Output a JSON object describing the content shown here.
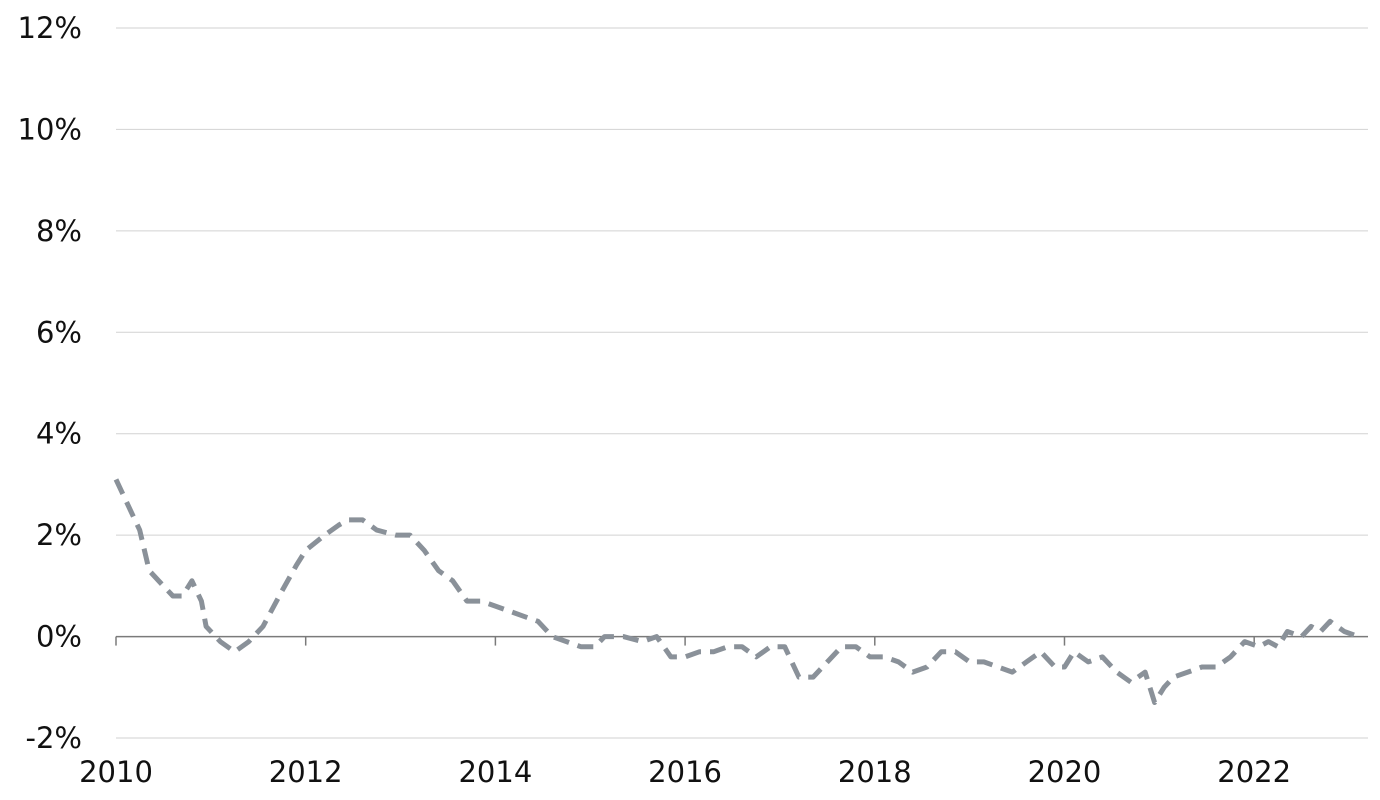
{
  "chart_data": {
    "type": "line",
    "title": "",
    "xlabel": "",
    "ylabel": "",
    "xlim": [
      2010,
      2023.3
    ],
    "ylim": [
      -2,
      12
    ],
    "grid": true,
    "x_ticks": [
      {
        "value": 2010,
        "label": "2010"
      },
      {
        "value": 2012,
        "label": "2012"
      },
      {
        "value": 2014,
        "label": "2014"
      },
      {
        "value": 2016,
        "label": "2016"
      },
      {
        "value": 2018,
        "label": "2018"
      },
      {
        "value": 2020,
        "label": "2020"
      },
      {
        "value": 2022,
        "label": "2022"
      }
    ],
    "y_ticks": [
      {
        "value": -2,
        "label": "-2%"
      },
      {
        "value": 0,
        "label": "0%"
      },
      {
        "value": 2,
        "label": "2%"
      },
      {
        "value": 4,
        "label": "4%"
      },
      {
        "value": 6,
        "label": "6%"
      },
      {
        "value": 8,
        "label": "8%"
      },
      {
        "value": 10,
        "label": "10%"
      },
      {
        "value": 12,
        "label": "12%"
      }
    ],
    "series": [
      {
        "color": "#8a9199",
        "style": "dashed",
        "points": [
          [
            2010.0,
            3.1
          ],
          [
            2010.25,
            2.1
          ],
          [
            2010.35,
            1.3
          ],
          [
            2010.5,
            1.0
          ],
          [
            2010.6,
            0.8
          ],
          [
            2010.7,
            0.8
          ],
          [
            2010.8,
            1.1
          ],
          [
            2010.9,
            0.7
          ],
          [
            2010.95,
            0.2
          ],
          [
            2011.1,
            -0.1
          ],
          [
            2011.25,
            -0.3
          ],
          [
            2011.4,
            -0.1
          ],
          [
            2011.55,
            0.2
          ],
          [
            2011.75,
            0.9
          ],
          [
            2011.9,
            1.4
          ],
          [
            2012.0,
            1.7
          ],
          [
            2012.2,
            2.0
          ],
          [
            2012.35,
            2.2
          ],
          [
            2012.45,
            2.3
          ],
          [
            2012.6,
            2.3
          ],
          [
            2012.75,
            2.1
          ],
          [
            2012.95,
            2.0
          ],
          [
            2013.1,
            2.0
          ],
          [
            2013.25,
            1.7
          ],
          [
            2013.4,
            1.3
          ],
          [
            2013.55,
            1.1
          ],
          [
            2013.7,
            0.7
          ],
          [
            2013.85,
            0.7
          ],
          [
            2014.0,
            0.6
          ],
          [
            2014.15,
            0.5
          ],
          [
            2014.3,
            0.4
          ],
          [
            2014.45,
            0.3
          ],
          [
            2014.6,
            0.0
          ],
          [
            2014.75,
            -0.1
          ],
          [
            2014.9,
            -0.2
          ],
          [
            2015.05,
            -0.2
          ],
          [
            2015.15,
            0.0
          ],
          [
            2015.35,
            0.0
          ],
          [
            2015.55,
            -0.1
          ],
          [
            2015.7,
            0.0
          ],
          [
            2015.85,
            -0.4
          ],
          [
            2016.0,
            -0.4
          ],
          [
            2016.15,
            -0.3
          ],
          [
            2016.3,
            -0.3
          ],
          [
            2016.45,
            -0.2
          ],
          [
            2016.6,
            -0.2
          ],
          [
            2016.75,
            -0.4
          ],
          [
            2016.9,
            -0.2
          ],
          [
            2017.05,
            -0.2
          ],
          [
            2017.2,
            -0.8
          ],
          [
            2017.35,
            -0.8
          ],
          [
            2017.5,
            -0.5
          ],
          [
            2017.65,
            -0.2
          ],
          [
            2017.8,
            -0.2
          ],
          [
            2017.95,
            -0.4
          ],
          [
            2018.1,
            -0.4
          ],
          [
            2018.25,
            -0.5
          ],
          [
            2018.4,
            -0.7
          ],
          [
            2018.55,
            -0.6
          ],
          [
            2018.7,
            -0.3
          ],
          [
            2018.85,
            -0.3
          ],
          [
            2019.0,
            -0.5
          ],
          [
            2019.15,
            -0.5
          ],
          [
            2019.3,
            -0.6
          ],
          [
            2019.45,
            -0.7
          ],
          [
            2019.6,
            -0.5
          ],
          [
            2019.75,
            -0.3
          ],
          [
            2019.9,
            -0.6
          ],
          [
            2020.0,
            -0.6
          ],
          [
            2020.1,
            -0.3
          ],
          [
            2020.25,
            -0.5
          ],
          [
            2020.4,
            -0.4
          ],
          [
            2020.55,
            -0.7
          ],
          [
            2020.7,
            -0.9
          ],
          [
            2020.85,
            -0.7
          ],
          [
            2020.95,
            -1.3
          ],
          [
            2021.05,
            -1.0
          ],
          [
            2021.15,
            -0.8
          ],
          [
            2021.3,
            -0.7
          ],
          [
            2021.45,
            -0.6
          ],
          [
            2021.6,
            -0.6
          ],
          [
            2021.75,
            -0.4
          ],
          [
            2021.9,
            -0.1
          ],
          [
            2022.05,
            -0.2
          ],
          [
            2022.15,
            -0.1
          ],
          [
            2022.25,
            -0.2
          ],
          [
            2022.35,
            0.1
          ],
          [
            2022.5,
            0.0
          ],
          [
            2022.6,
            0.2
          ],
          [
            2022.7,
            0.1
          ],
          [
            2022.8,
            0.3
          ],
          [
            2022.95,
            0.1
          ],
          [
            2023.1,
            0.0
          ]
        ]
      },
      {
        "color": "#0f3469",
        "style": "solid",
        "points": []
      },
      {
        "color": "#fcc62d",
        "style": "solid",
        "points": []
      }
    ]
  }
}
